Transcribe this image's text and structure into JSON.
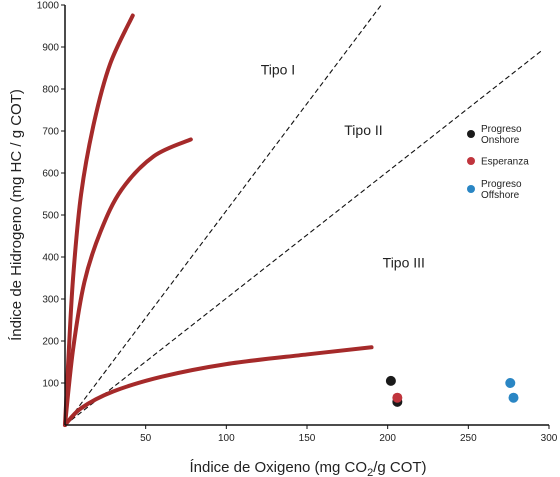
{
  "chart_data": {
    "type": "scatter",
    "xlabel": "Índice de Oxigeno (mg CO2/g COT)",
    "xlabel_parts": {
      "main": "Índice de Oxigeno (mg CO",
      "sub": "2",
      "tail": "/g COT)"
    },
    "ylabel": "Índice de Hidrogeno (mg HC / g COT)",
    "xlim": [
      0,
      300
    ],
    "ylim": [
      0,
      1000
    ],
    "xticks": [
      50,
      100,
      150,
      200,
      250,
      300
    ],
    "yticks": [
      100,
      200,
      300,
      400,
      500,
      600,
      700,
      800,
      900,
      1000
    ],
    "grid": false,
    "legend_position": "right",
    "colors": {
      "curve": "#a52a2a",
      "progreso_onshore": "#1a1a1a",
      "esperanza": "#c0353d",
      "progreso_offshore": "#2a86c4"
    },
    "region_labels": [
      {
        "text": "Tipo I",
        "x": 132,
        "y": 835
      },
      {
        "text": "Tipo II",
        "x": 185,
        "y": 690
      },
      {
        "text": "Tipo III",
        "x": 210,
        "y": 375
      }
    ],
    "boundary_lines": [
      {
        "from": [
          0,
          0
        ],
        "to": [
          196,
          1000
        ]
      },
      {
        "from": [
          0,
          0
        ],
        "to": [
          295,
          890
        ]
      }
    ],
    "curves": [
      {
        "name": "Tipo I",
        "points": [
          [
            0,
            0
          ],
          [
            2,
            150
          ],
          [
            5,
            350
          ],
          [
            10,
            550
          ],
          [
            18,
            720
          ],
          [
            28,
            860
          ],
          [
            42,
            975
          ]
        ]
      },
      {
        "name": "Tipo II",
        "points": [
          [
            0,
            0
          ],
          [
            5,
            180
          ],
          [
            12,
            340
          ],
          [
            22,
            460
          ],
          [
            35,
            560
          ],
          [
            55,
            640
          ],
          [
            78,
            680
          ]
        ]
      },
      {
        "name": "Tipo III",
        "points": [
          [
            0,
            0
          ],
          [
            10,
            40
          ],
          [
            30,
            80
          ],
          [
            60,
            115
          ],
          [
            100,
            145
          ],
          [
            150,
            168
          ],
          [
            190,
            185
          ]
        ]
      }
    ],
    "series": [
      {
        "name": "Progreso Onshore",
        "legend_lines": [
          "Progreso",
          "Onshore"
        ],
        "color": "#1a1a1a",
        "points": [
          [
            202,
            105
          ],
          [
            206,
            55
          ]
        ]
      },
      {
        "name": "Esperanza",
        "legend_lines": [
          "Esperanza"
        ],
        "color": "#c0353d",
        "points": [
          [
            206,
            65
          ]
        ]
      },
      {
        "name": "Progreso Offshore",
        "legend_lines": [
          "Progreso",
          "Offshore"
        ],
        "color": "#2a86c4",
        "points": [
          [
            276,
            100
          ],
          [
            278,
            65
          ]
        ]
      }
    ]
  }
}
